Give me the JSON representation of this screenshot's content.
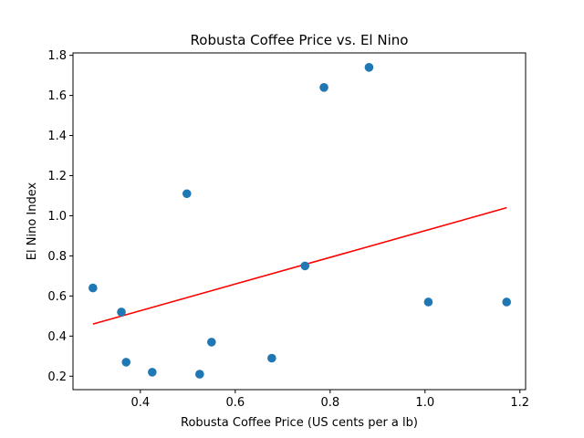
{
  "chart_data": {
    "type": "scatter",
    "title": "Robusta Coffee Price vs. El Nino",
    "xlabel": "Robusta Coffee Price (US cents per a lb)",
    "ylabel": "El Nino Index",
    "xlim": [
      0.258,
      1.212
    ],
    "ylim": [
      0.133,
      1.812
    ],
    "xticks": [
      0.4,
      0.6,
      0.8,
      1.0,
      1.2
    ],
    "xtick_labels": [
      "0.4",
      "0.6",
      "0.8",
      "1.0",
      "1.2"
    ],
    "yticks": [
      0.2,
      0.4,
      0.6,
      0.8,
      1.0,
      1.2,
      1.4,
      1.6,
      1.8
    ],
    "ytick_labels": [
      "0.2",
      "0.4",
      "0.6",
      "0.8",
      "1.0",
      "1.2",
      "1.4",
      "1.6",
      "1.8"
    ],
    "grid": false,
    "points": [
      {
        "x": 0.3,
        "y": 0.64
      },
      {
        "x": 0.36,
        "y": 0.52
      },
      {
        "x": 0.37,
        "y": 0.27
      },
      {
        "x": 0.425,
        "y": 0.22
      },
      {
        "x": 0.498,
        "y": 1.11
      },
      {
        "x": 0.525,
        "y": 0.21
      },
      {
        "x": 0.55,
        "y": 0.37
      },
      {
        "x": 0.677,
        "y": 0.29
      },
      {
        "x": 0.747,
        "y": 0.75
      },
      {
        "x": 0.787,
        "y": 1.64
      },
      {
        "x": 0.882,
        "y": 1.74
      },
      {
        "x": 1.007,
        "y": 0.57
      },
      {
        "x": 1.172,
        "y": 0.57
      }
    ],
    "trendline": {
      "x": [
        0.3,
        1.172
      ],
      "y": [
        0.46,
        1.04
      ]
    },
    "colors": {
      "points": "#1f77b4",
      "trendline": "#ff0000"
    }
  }
}
